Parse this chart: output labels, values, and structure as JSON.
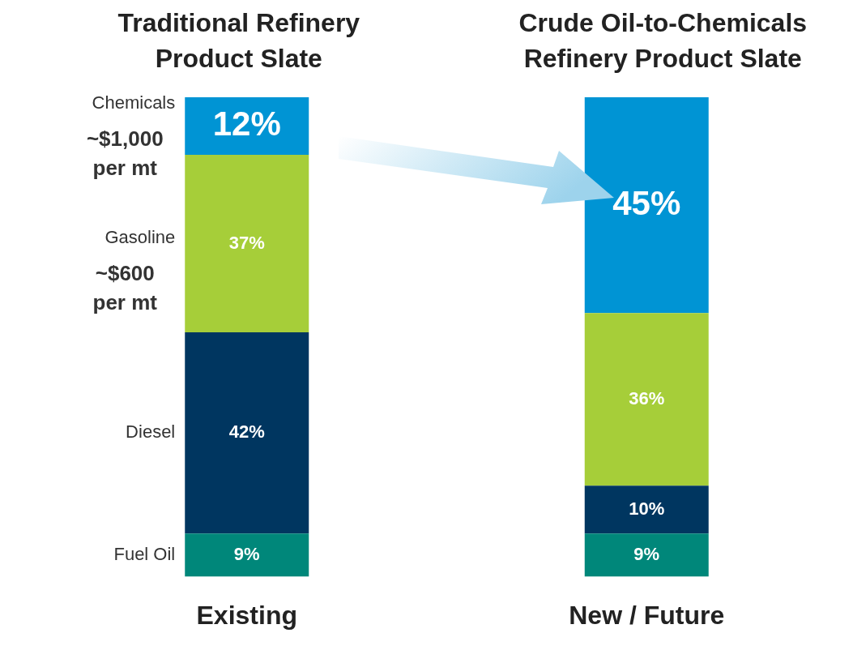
{
  "chart_data": {
    "type": "bar",
    "stacked": true,
    "categories": [
      "Existing",
      "New / Future"
    ],
    "series": [
      {
        "name": "Fuel Oil",
        "color": "#00877a",
        "values": [
          9,
          9
        ],
        "value_labels": [
          "9%",
          "9%"
        ]
      },
      {
        "name": "Diesel",
        "color": "#003660",
        "values": [
          42,
          10
        ],
        "value_labels": [
          "42%",
          "10%"
        ]
      },
      {
        "name": "Gasoline",
        "color": "#a6ce39",
        "values": [
          37,
          36
        ],
        "value_labels": [
          "37%",
          "36%"
        ]
      },
      {
        "name": "Chemicals",
        "color": "#0094d4",
        "values": [
          12,
          45
        ],
        "value_labels": [
          "12%",
          "45%"
        ]
      }
    ],
    "grid": false,
    "legend": false,
    "tick_labels": "x",
    "annotations": [
      "Traditional Refinery Product Slate",
      "Crude Oil-to-Chemicals Refinery Product Slate",
      "~$1,000 per mt",
      "~$600 per mt"
    ]
  }
}
